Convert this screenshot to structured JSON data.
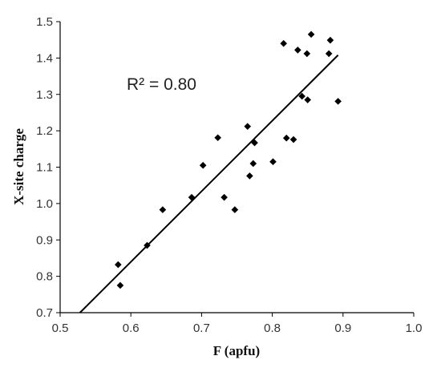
{
  "chart_data": {
    "type": "scatter",
    "title": "",
    "xlabel": "F (apfu)",
    "ylabel": "X-site charge",
    "xlim": [
      0.5,
      1.0
    ],
    "ylim": [
      0.7,
      1.5
    ],
    "x_ticks": [
      "0.5",
      "0.6",
      "0.7",
      "0.8",
      "0.9",
      "1.0"
    ],
    "y_ticks": [
      "0.7",
      "0.8",
      "0.9",
      "1.0",
      "1.1",
      "1.2",
      "1.3",
      "1.4",
      "1.5"
    ],
    "grid": false,
    "legend": "none",
    "annotation": "R² = 0.80",
    "marker_color": "#000000",
    "trendline": {
      "type": "linear",
      "x": [
        0.528,
        0.893
      ],
      "y": [
        0.7,
        1.408
      ]
    },
    "points": [
      {
        "x": 0.582,
        "y": 0.832
      },
      {
        "x": 0.585,
        "y": 0.775
      },
      {
        "x": 0.623,
        "y": 0.885
      },
      {
        "x": 0.645,
        "y": 0.983
      },
      {
        "x": 0.686,
        "y": 1.017
      },
      {
        "x": 0.702,
        "y": 1.105
      },
      {
        "x": 0.723,
        "y": 1.181
      },
      {
        "x": 0.732,
        "y": 1.017
      },
      {
        "x": 0.747,
        "y": 0.983
      },
      {
        "x": 0.765,
        "y": 1.212
      },
      {
        "x": 0.768,
        "y": 1.076
      },
      {
        "x": 0.773,
        "y": 1.11
      },
      {
        "x": 0.775,
        "y": 1.167
      },
      {
        "x": 0.801,
        "y": 1.115
      },
      {
        "x": 0.816,
        "y": 1.44
      },
      {
        "x": 0.82,
        "y": 1.18
      },
      {
        "x": 0.83,
        "y": 1.176
      },
      {
        "x": 0.836,
        "y": 1.422
      },
      {
        "x": 0.842,
        "y": 1.295
      },
      {
        "x": 0.849,
        "y": 1.412
      },
      {
        "x": 0.85,
        "y": 1.285
      },
      {
        "x": 0.855,
        "y": 1.465
      },
      {
        "x": 0.88,
        "y": 1.412
      },
      {
        "x": 0.882,
        "y": 1.449
      },
      {
        "x": 0.893,
        "y": 1.281
      }
    ]
  }
}
